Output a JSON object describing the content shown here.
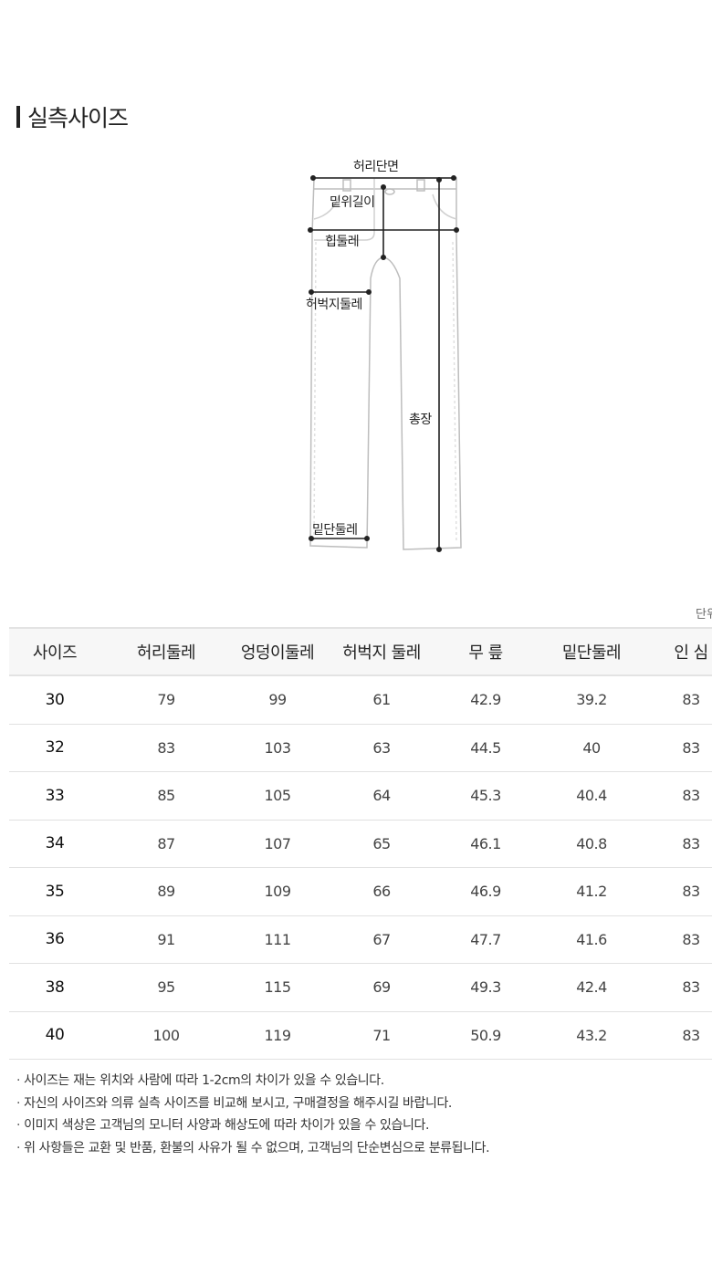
{
  "title": "실측사이즈",
  "diagram": {
    "labels": {
      "waist": "허리단면",
      "rise": "밑위길이",
      "hip": "힙둘레",
      "thigh": "허벅지둘레",
      "length": "총장",
      "hem": "밑단둘레"
    }
  },
  "unit_label": "단위",
  "table": {
    "headers": [
      "사이즈",
      "허리둘레",
      "엉덩이둘레",
      "허벅지 둘레",
      "무 릎",
      "밑단둘레",
      "인 심"
    ],
    "rows": [
      [
        "30",
        "79",
        "99",
        "61",
        "42.9",
        "39.2",
        "83"
      ],
      [
        "32",
        "83",
        "103",
        "63",
        "44.5",
        "40",
        "83"
      ],
      [
        "33",
        "85",
        "105",
        "64",
        "45.3",
        "40.4",
        "83"
      ],
      [
        "34",
        "87",
        "107",
        "65",
        "46.1",
        "40.8",
        "83"
      ],
      [
        "35",
        "89",
        "109",
        "66",
        "46.9",
        "41.2",
        "83"
      ],
      [
        "36",
        "91",
        "111",
        "67",
        "47.7",
        "41.6",
        "83"
      ],
      [
        "38",
        "95",
        "115",
        "69",
        "49.3",
        "42.4",
        "83"
      ],
      [
        "40",
        "100",
        "119",
        "71",
        "50.9",
        "43.2",
        "83"
      ]
    ]
  },
  "notes": [
    "사이즈는 재는 위치와 사람에 따라 1-2cm의 차이가 있을 수 있습니다.",
    "자신의 사이즈와 의류 실측 사이즈를 비교해 보시고, 구매결정을 해주시길 바랍니다.",
    "이미지 색상은 고객님의 모니터 사양과 해상도에 따라 차이가 있을 수 있습니다.",
    "위 사항들은 교환 및 반품, 환불의 사유가 될 수 없으며, 고객님의 단순변심으로 분류됩니다."
  ]
}
